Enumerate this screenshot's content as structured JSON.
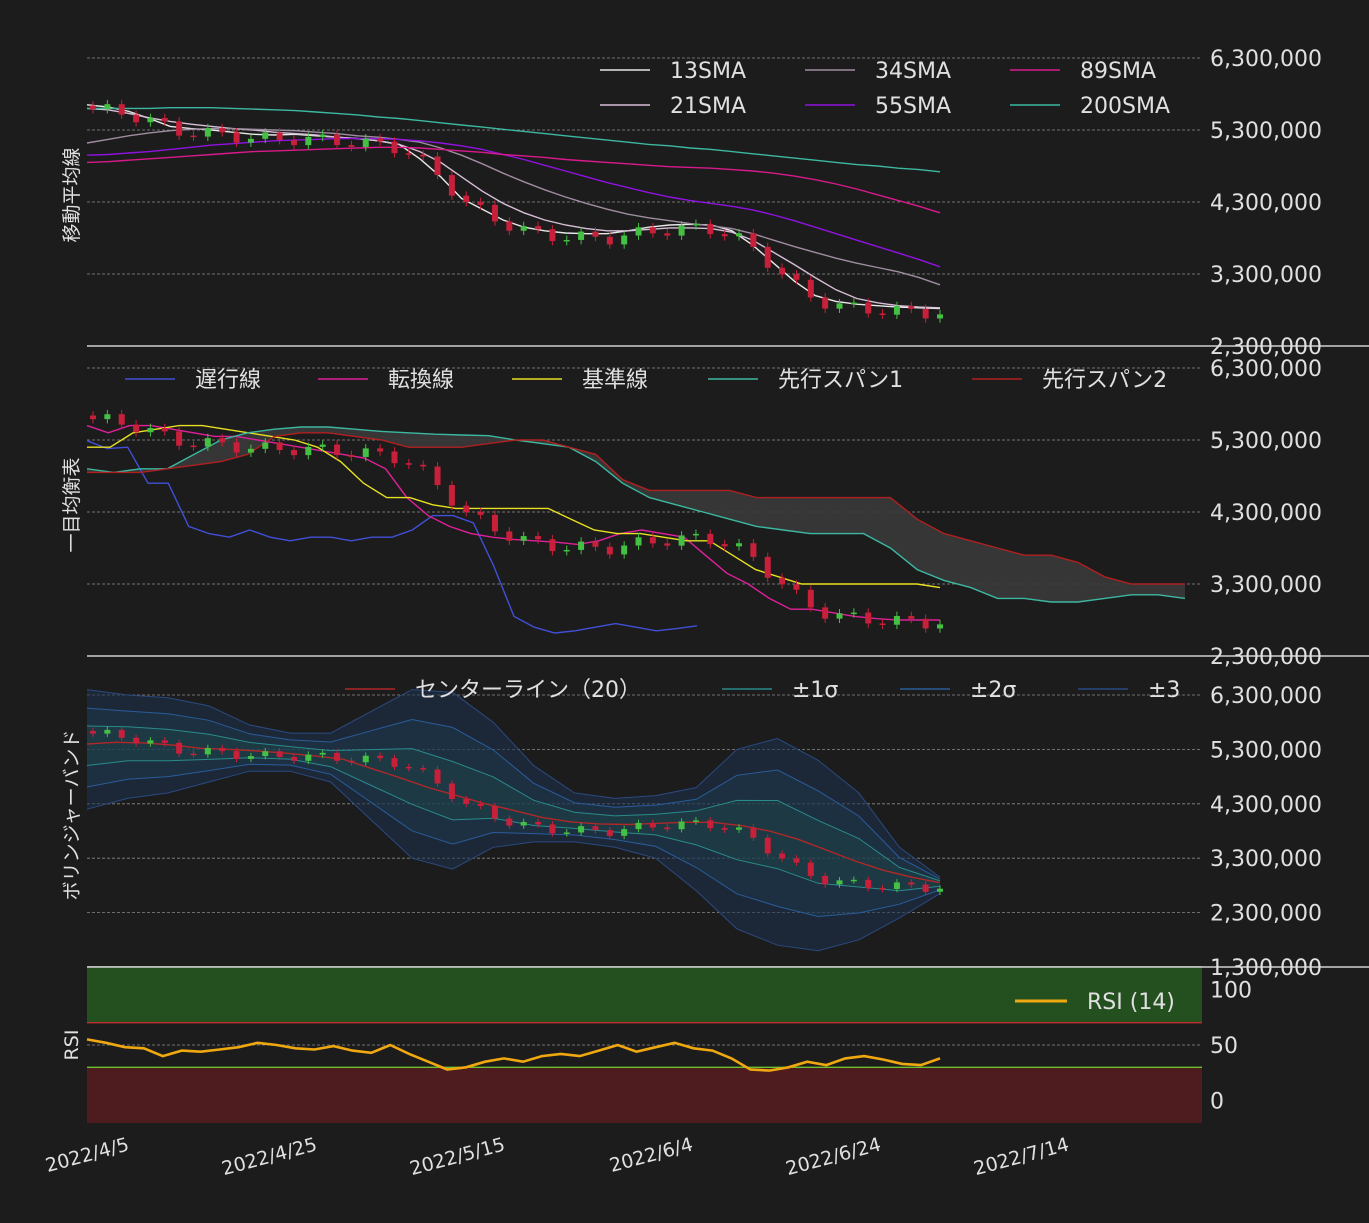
{
  "chart_data": [
    {
      "type": "line",
      "panel": "moving-average",
      "ylabel": "移動平均線",
      "yticks": [
        "2,300,000",
        "3,300,000",
        "4,300,000",
        "5,300,000",
        "6,300,000"
      ],
      "ylim": [
        2300000,
        6300000
      ],
      "legend": [
        "13SMA",
        "34SMA",
        "89SMA",
        "21SMA",
        "55SMA",
        "200SMA"
      ],
      "series": [
        {
          "name": "13SMA",
          "color": "#e8e8e8",
          "values": [
            5650000,
            5620000,
            5560000,
            5460000,
            5350000,
            5320000,
            5300000,
            5270000,
            5240000,
            5230000,
            5240000,
            5220000,
            5200000,
            5180000,
            5150000,
            5100000,
            4900000,
            4650000,
            4350000,
            4200000,
            4050000,
            3950000,
            3900000,
            3870000,
            3860000,
            3860000,
            3900000,
            3950000,
            3980000,
            3990000,
            3980000,
            3900000,
            3700000,
            3450000,
            3200000,
            3000000,
            2920000,
            2880000,
            2860000,
            2840000,
            2830000,
            2820000
          ]
        },
        {
          "name": "21SMA",
          "color": "#d7bfd7",
          "values": [
            5600000,
            5580000,
            5530000,
            5470000,
            5420000,
            5380000,
            5350000,
            5320000,
            5300000,
            5270000,
            5250000,
            5230000,
            5200000,
            5180000,
            5150000,
            5100000,
            5000000,
            4850000,
            4650000,
            4450000,
            4280000,
            4150000,
            4050000,
            3980000,
            3930000,
            3900000,
            3900000,
            3920000,
            3940000,
            3940000,
            3930000,
            3880000,
            3770000,
            3600000,
            3430000,
            3250000,
            3080000,
            2960000,
            2900000,
            2860000,
            2840000,
            2830000
          ]
        },
        {
          "name": "34SMA",
          "color": "#a08ca0",
          "values": [
            5120000,
            5170000,
            5220000,
            5260000,
            5290000,
            5310000,
            5320000,
            5320000,
            5310000,
            5300000,
            5290000,
            5270000,
            5250000,
            5220000,
            5200000,
            5170000,
            5130000,
            5050000,
            4950000,
            4830000,
            4700000,
            4580000,
            4470000,
            4370000,
            4280000,
            4200000,
            4130000,
            4080000,
            4040000,
            4000000,
            3970000,
            3930000,
            3860000,
            3770000,
            3680000,
            3600000,
            3520000,
            3450000,
            3390000,
            3330000,
            3250000,
            3150000
          ]
        },
        {
          "name": "55SMA",
          "color": "#9012e0",
          "values": [
            4950000,
            4960000,
            4980000,
            5000000,
            5030000,
            5060000,
            5090000,
            5110000,
            5130000,
            5150000,
            5160000,
            5170000,
            5180000,
            5180000,
            5180000,
            5170000,
            5150000,
            5120000,
            5080000,
            5030000,
            4960000,
            4890000,
            4810000,
            4730000,
            4650000,
            4570000,
            4500000,
            4430000,
            4370000,
            4320000,
            4280000,
            4240000,
            4190000,
            4120000,
            4040000,
            3950000,
            3860000,
            3770000,
            3680000,
            3590000,
            3500000,
            3400000
          ]
        },
        {
          "name": "89SMA",
          "color": "#d81a8c",
          "values": [
            4850000,
            4860000,
            4880000,
            4900000,
            4920000,
            4940000,
            4960000,
            4980000,
            5000000,
            5010000,
            5020000,
            5030000,
            5040000,
            5050000,
            5060000,
            5060000,
            5050000,
            5030000,
            5010000,
            4990000,
            4960000,
            4940000,
            4920000,
            4890000,
            4870000,
            4850000,
            4830000,
            4810000,
            4790000,
            4780000,
            4770000,
            4750000,
            4730000,
            4700000,
            4660000,
            4610000,
            4550000,
            4480000,
            4400000,
            4320000,
            4240000,
            4150000
          ]
        },
        {
          "name": "200SMA",
          "color": "#3cb8a0",
          "values": [
            5600000,
            5600000,
            5600000,
            5600000,
            5610000,
            5610000,
            5610000,
            5600000,
            5590000,
            5580000,
            5570000,
            5550000,
            5530000,
            5510000,
            5480000,
            5460000,
            5430000,
            5400000,
            5370000,
            5340000,
            5310000,
            5280000,
            5250000,
            5220000,
            5190000,
            5160000,
            5130000,
            5100000,
            5080000,
            5050000,
            5030000,
            5000000,
            4970000,
            4940000,
            4910000,
            4880000,
            4850000,
            4820000,
            4800000,
            4770000,
            4750000,
            4720000
          ]
        }
      ]
    },
    {
      "type": "line",
      "panel": "ichimoku",
      "ylabel": "一目均衡表",
      "yticks": [
        "2,300,000",
        "3,300,000",
        "4,300,000",
        "5,300,000",
        "6,300,000"
      ],
      "ylim": [
        2300000,
        6300000
      ],
      "legend": [
        "遅行線",
        "転換線",
        "基準線",
        "先行スパン1",
        "先行スパン2"
      ],
      "series": [
        {
          "name": "遅行線",
          "color": "#4050d8",
          "values": [
            5290000,
            5180000,
            5200000,
            4700000,
            4700000,
            4100000,
            4000000,
            3950000,
            4050000,
            3950000,
            3900000,
            3950000,
            3950000,
            3900000,
            3950000,
            3950000,
            4050000,
            4250000,
            4250000,
            4150000,
            3550000,
            2850000,
            2700000,
            2620000,
            2650000,
            2700000,
            2750000,
            2700000,
            2650000,
            2680000,
            2720000
          ]
        },
        {
          "name": "転換線",
          "color": "#e0209a",
          "values": [
            5500000,
            5400000,
            5500000,
            5500000,
            5450000,
            5400000,
            5350000,
            5350000,
            5300000,
            5250000,
            5200000,
            5150000,
            5100000,
            5050000,
            4900000,
            4500000,
            4250000,
            4100000,
            4000000,
            3950000,
            3920000,
            3900000,
            3880000,
            3850000,
            3900000,
            4000000,
            4050000,
            4000000,
            3950000,
            3700000,
            3450000,
            3300000,
            3100000,
            2950000,
            2950000,
            2900000,
            2850000,
            2820000,
            2800000,
            2800000,
            2800000
          ]
        },
        {
          "name": "基準線",
          "color": "#e8e020",
          "values": [
            5200000,
            5200000,
            5400000,
            5450000,
            5500000,
            5500000,
            5450000,
            5400000,
            5350000,
            5300000,
            5200000,
            5000000,
            4700000,
            4500000,
            4500000,
            4400000,
            4350000,
            4350000,
            4350000,
            4350000,
            4350000,
            4200000,
            4050000,
            4000000,
            4000000,
            3950000,
            3900000,
            3900000,
            3700000,
            3500000,
            3400000,
            3300000,
            3300000,
            3300000,
            3300000,
            3300000,
            3300000,
            3250000
          ]
        },
        {
          "name": "先行スパン1",
          "color": "#3cb8a0",
          "values": [
            4900000,
            4850000,
            4900000,
            4900000,
            5100000,
            5300000,
            5400000,
            5450000,
            5480000,
            5480000,
            5450000,
            5420000,
            5400000,
            5380000,
            5370000,
            5360000,
            5300000,
            5250000,
            5200000,
            5000000,
            4700000,
            4500000,
            4400000,
            4300000,
            4200000,
            4100000,
            4050000,
            4000000,
            4000000,
            4000000,
            3800000,
            3500000,
            3350000,
            3250000,
            3100000,
            3100000,
            3050000,
            3050000,
            3100000,
            3150000,
            3150000,
            3100000
          ]
        },
        {
          "name": "先行スパン2",
          "color": "#b02020",
          "values": [
            4850000,
            4850000,
            4850000,
            4900000,
            4950000,
            5000000,
            5100000,
            5350000,
            5400000,
            5400000,
            5350000,
            5300000,
            5200000,
            5200000,
            5200000,
            5250000,
            5300000,
            5300000,
            5200000,
            5100000,
            4750000,
            4600000,
            4600000,
            4600000,
            4600000,
            4500000,
            4500000,
            4500000,
            4500000,
            4500000,
            4500000,
            4200000,
            4000000,
            3900000,
            3800000,
            3700000,
            3700000,
            3600000,
            3400000,
            3300000,
            3300000,
            3300000
          ]
        }
      ]
    },
    {
      "type": "line",
      "panel": "bollinger",
      "ylabel": "ボリンジャーバンド",
      "yticks": [
        "1,300,000",
        "2,300,000",
        "3,300,000",
        "4,300,000",
        "5,300,000",
        "6,300,000"
      ],
      "ylim": [
        1300000,
        6300000
      ],
      "legend": [
        "センターライン（20）",
        "±1σ",
        "±2σ",
        "±3"
      ],
      "series": [
        {
          "name": "センターライン（20）",
          "color": "#b02828",
          "values": [
            5400000,
            5430000,
            5420000,
            5380000,
            5320000,
            5300000,
            5270000,
            5230000,
            5180000,
            5120000,
            4950000,
            4780000,
            4600000,
            4450000,
            4300000,
            4180000,
            4050000,
            3970000,
            3930000,
            3920000,
            3940000,
            3960000,
            3960000,
            3900000,
            3800000,
            3650000,
            3450000,
            3250000,
            3080000,
            2950000,
            2850000
          ]
        }
      ],
      "upper3": [
        6400000,
        6300000,
        6250000,
        6100000,
        5750000,
        5600000,
        5600000,
        6000000,
        6400000,
        6350000,
        5800000,
        5000000,
        4500000,
        4400000,
        4450000,
        4600000,
        5300000,
        5500000,
        5100000,
        4500000,
        3500000,
        2950000
      ],
      "lower3": [
        4200000,
        4400000,
        4500000,
        4700000,
        4900000,
        4900000,
        4700000,
        4000000,
        3300000,
        3100000,
        3500000,
        3600000,
        3600000,
        3500000,
        3300000,
        2700000,
        2000000,
        1700000,
        1600000,
        1800000,
        2200000,
        2650000
      ]
    },
    {
      "type": "line",
      "panel": "rsi",
      "ylabel": "RSI",
      "yticks": [
        "0",
        "50",
        "100"
      ],
      "ylim": [
        0,
        100
      ],
      "legend": [
        "RSI (14)"
      ],
      "series": [
        {
          "name": "RSI (14)",
          "color": "#f0a810",
          "values": [
            55,
            52,
            48,
            47,
            40,
            45,
            44,
            46,
            48,
            52,
            50,
            47,
            46,
            49,
            45,
            43,
            50,
            42,
            35,
            28,
            30,
            35,
            38,
            35,
            40,
            42,
            40,
            45,
            50,
            44,
            48,
            52,
            47,
            45,
            38,
            28,
            27,
            30,
            35,
            32,
            38,
            40,
            37,
            33,
            32,
            38
          ]
        }
      ]
    }
  ],
  "xticks": [
    "2022/4/5",
    "2022/4/25",
    "2022/5/15",
    "2022/6/4",
    "2022/6/24",
    "2022/7/14"
  ],
  "colors": {
    "up": "#44c044",
    "down": "#c8203a",
    "background": "#1c1c1c"
  }
}
